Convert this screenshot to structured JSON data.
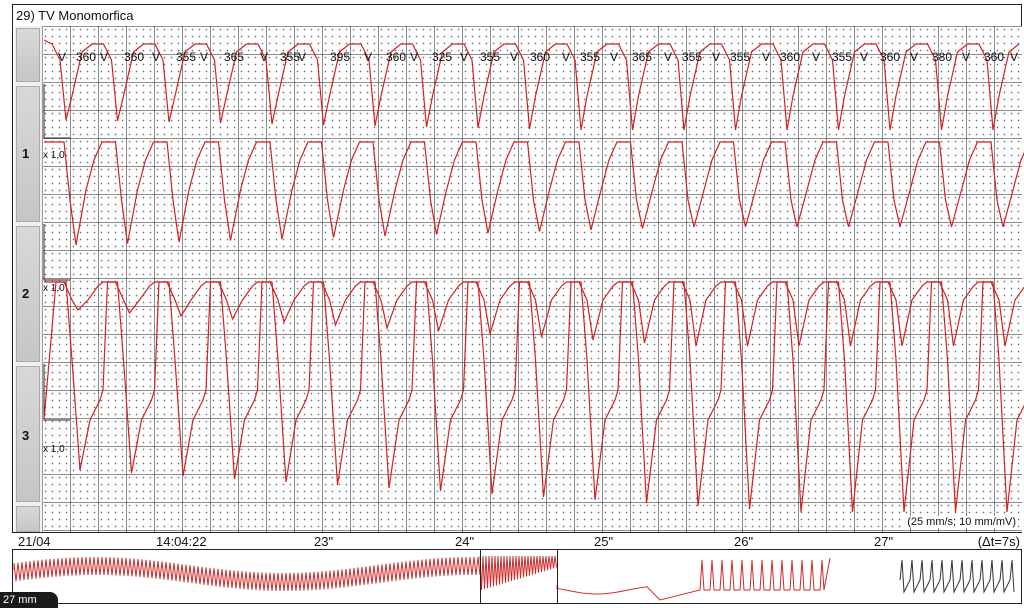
{
  "window_title": "29) TV Monomorfica",
  "channels": [
    {
      "id": "1",
      "scale": "x 1,0"
    },
    {
      "id": "2",
      "scale": "x 1,0"
    },
    {
      "id": "3",
      "scale": "x 1,0"
    }
  ],
  "markers": [
    "V",
    "360",
    "V",
    "360",
    "V",
    "355",
    "V",
    "365",
    "V",
    "355",
    "V",
    "395",
    "V",
    "360",
    "V",
    "325",
    "V",
    "355",
    "V",
    "360",
    "V",
    "355",
    "V",
    "365",
    "V",
    "355",
    "V",
    "355",
    "V",
    "360",
    "V",
    "355",
    "V",
    "360",
    "V",
    "380",
    "V",
    "360",
    "V"
  ],
  "speed_label": "(25 mm/s; 10 mm/mV)",
  "timebar": {
    "date": "21/04",
    "clock": "14:04:22",
    "seconds": [
      "23\"",
      "24\"",
      "25\"",
      "26\"",
      "27\""
    ],
    "delta": "(Δt=7s)"
  },
  "mm_badge": "27 mm",
  "colors": {
    "trace": "#d42020",
    "grid": "#000000",
    "overview_trace": "#cf2a2a",
    "overview_dark": "#333333"
  }
}
